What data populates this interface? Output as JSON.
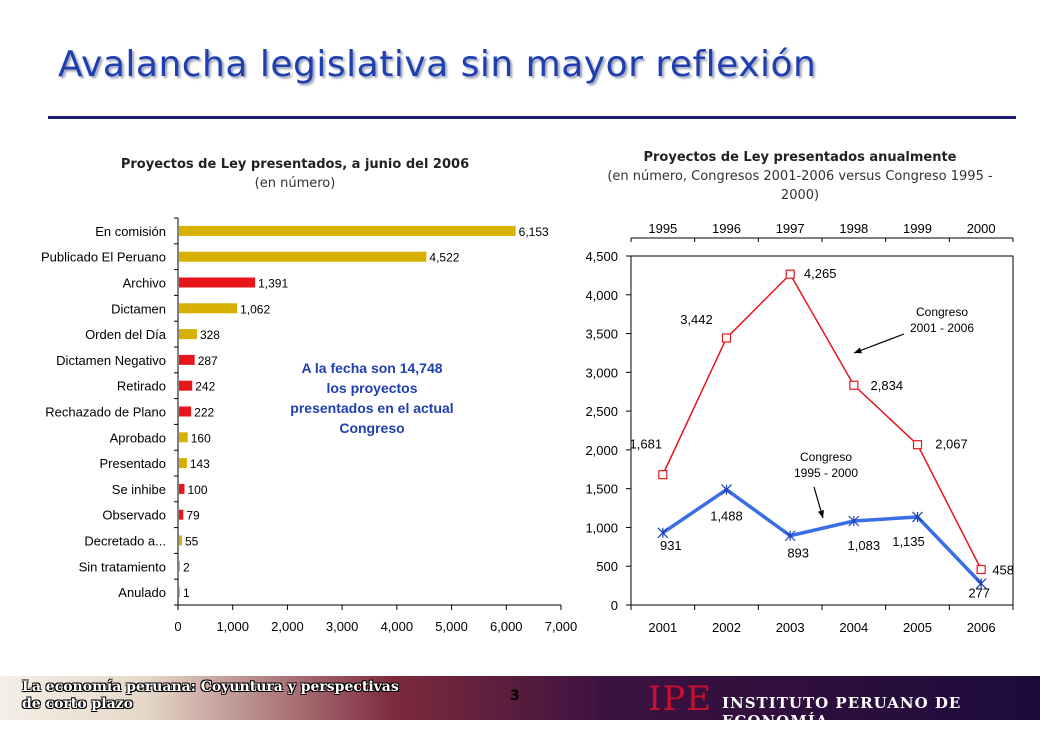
{
  "slide": {
    "title": "Avalancha legislativa sin mayor reflexión",
    "page_number": "3",
    "footer_text": "La economía peruana: Coyuntura y perspectivas de corto plazo",
    "logo_text": "IPE",
    "institute_name": "INSTITUTO PERUANO DE ECONOMÍA"
  },
  "colors": {
    "title": "#1f3fb0",
    "gold": "#d8b000",
    "red": "#e8161b",
    "line_2001": "#e8161b",
    "line_1995": "#3a6ee6",
    "annotation": "#1f3fb0"
  },
  "chart_data": [
    {
      "type": "bar",
      "orientation": "horizontal",
      "title": "Proyectos de Ley presentados, a junio del 2006",
      "subtitle": "(en número)",
      "categories": [
        "En comisión",
        "Publicado El Peruano",
        "Archivo",
        "Dictamen",
        "Orden del Día",
        "Dictamen Negativo",
        "Retirado",
        "Rechazado de Plano",
        "Aprobado",
        "Presentado",
        "Se inhibe",
        "Observado",
        "Decretado a...",
        "Sin tratamiento",
        "Anulado"
      ],
      "values": [
        6153,
        4522,
        1391,
        1062,
        328,
        287,
        242,
        222,
        160,
        143,
        100,
        79,
        55,
        2,
        1
      ],
      "value_labels": [
        "6,153",
        "4,522",
        "1,391",
        "1,062",
        "328",
        "287",
        "242",
        "222",
        "160",
        "143",
        "100",
        "79",
        "55",
        "2",
        "1"
      ],
      "bar_colors": [
        "gold",
        "gold",
        "red",
        "gold",
        "gold",
        "red",
        "red",
        "red",
        "gold",
        "gold",
        "red",
        "red",
        "gold",
        "gold",
        "gold"
      ],
      "xlim": [
        0,
        7000
      ],
      "xticks": [
        "0",
        "1,000",
        "2,000",
        "3,000",
        "4,000",
        "5,000",
        "6,000",
        "7,000"
      ],
      "annotation": "A la fecha son 14,748 los proyectos presentados en el actual Congreso"
    },
    {
      "type": "line",
      "title": "Proyectos de Ley presentados anualmente",
      "subtitle": "(en número, Congresos 2001-2006  versus Congreso 1995 - 2000)",
      "x_bottom": [
        "2001",
        "2002",
        "2003",
        "2004",
        "2005",
        "2006"
      ],
      "x_top": [
        "1995",
        "1996",
        "1997",
        "1998",
        "1999",
        "2000"
      ],
      "ylim": [
        0,
        4500
      ],
      "yticks": [
        "0",
        "500",
        "1,000",
        "1,500",
        "2,000",
        "2,500",
        "3,000",
        "3,500",
        "4,000",
        "4,500"
      ],
      "series": [
        {
          "name": "Congreso 2001 - 2006",
          "values": [
            1681,
            3442,
            4265,
            2834,
            2067,
            458
          ],
          "labels": [
            "1,681",
            "3,442",
            "4,265",
            "2,834",
            "2,067",
            "458"
          ],
          "marker": "square"
        },
        {
          "name": "Congreso 1995 - 2000",
          "values": [
            931,
            1488,
            893,
            1083,
            1135,
            277
          ],
          "labels": [
            "931",
            "1,488",
            "893",
            "1,083",
            "1,135",
            "277"
          ],
          "marker": "star"
        }
      ]
    }
  ]
}
